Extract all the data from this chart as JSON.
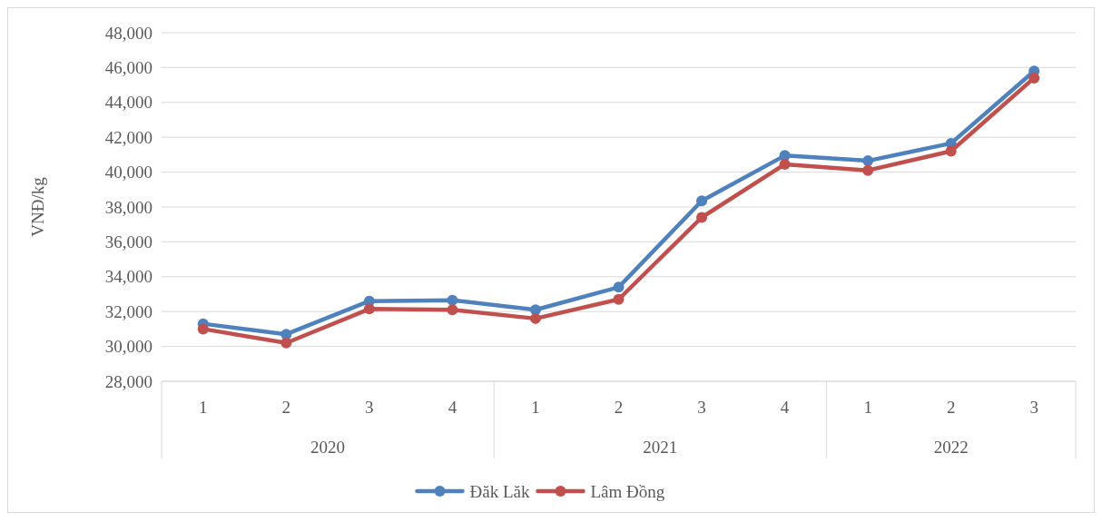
{
  "chart_data": {
    "type": "line",
    "ylabel": "VNĐ/kg",
    "categories": [
      "1",
      "2",
      "3",
      "4",
      "1",
      "2",
      "3",
      "4",
      "1",
      "2",
      "3"
    ],
    "annotations": [
      "2020",
      "2021",
      "2022"
    ],
    "series": [
      {
        "name": "Đăk Lăk",
        "color": "#4f81bd",
        "values": [
          31300,
          30700,
          32600,
          32650,
          32100,
          33400,
          38350,
          40950,
          40650,
          41650,
          45800
        ]
      },
      {
        "name": "Lâm Đồng",
        "color": "#c0504d",
        "values": [
          31000,
          30200,
          32150,
          32100,
          31600,
          32700,
          37400,
          40450,
          40100,
          41200,
          45400
        ]
      }
    ],
    "ylim": [
      28000,
      48000
    ],
    "yticks": [
      {
        "value": 28000,
        "label": "28,000"
      },
      {
        "value": 30000,
        "label": "30,000"
      },
      {
        "value": 32000,
        "label": "32,000"
      },
      {
        "value": 34000,
        "label": "34,000"
      },
      {
        "value": 36000,
        "label": "36,000"
      },
      {
        "value": 38000,
        "label": "38,000"
      },
      {
        "value": 40000,
        "label": "40,000"
      },
      {
        "value": 42000,
        "label": "42,000"
      },
      {
        "value": 44000,
        "label": "44,000"
      },
      {
        "value": 46000,
        "label": "46,000"
      },
      {
        "value": 48000,
        "label": "48,000"
      }
    ],
    "grid": "y",
    "legend": "bottom",
    "marker": "circle",
    "line_style": "solid"
  }
}
